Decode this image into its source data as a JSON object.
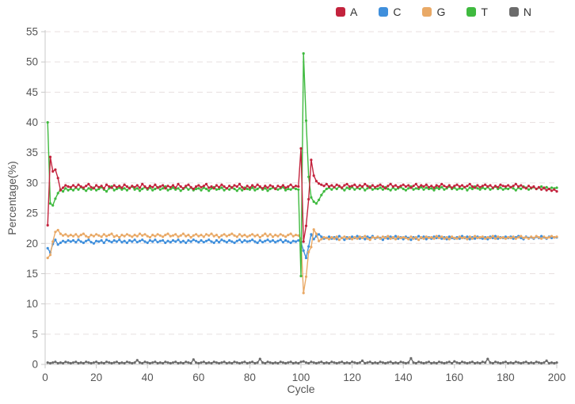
{
  "style": {
    "background": "#ffffff",
    "gridline_color": "#e8dfdf",
    "axis_line_color": "#c9c9c9",
    "tick_label_color": "#555555",
    "axis_title_color": "#555555",
    "legend_label_color": "#333333"
  },
  "axes": {
    "x_title": "Cycle",
    "y_title": "Percentage(%)"
  },
  "chart_data": {
    "type": "line",
    "title": "",
    "xlabel": "Cycle",
    "ylabel": "Percentage(%)",
    "xlim": [
      0,
      200
    ],
    "ylim": [
      0,
      55
    ],
    "xticks": [
      0,
      20,
      40,
      60,
      80,
      100,
      120,
      140,
      160,
      180,
      200
    ],
    "yticks": [
      0,
      5,
      10,
      15,
      20,
      25,
      30,
      35,
      40,
      45,
      50,
      55
    ],
    "grid": "horizontal-dashed",
    "legend_position": "top-right",
    "x_first_cycle": 1,
    "x_last_cycle": 200,
    "series": [
      {
        "name": "A",
        "color": "#c3233d",
        "values": [
          23.0,
          34.3,
          31.9,
          32.2,
          30.8,
          28.8,
          29.2,
          29.6,
          29.4,
          29.3,
          29.6,
          29.3,
          29.7,
          29.4,
          29.2,
          29.5,
          29.8,
          29.3,
          29.1,
          29.6,
          29.3,
          29.5,
          29.1,
          29.7,
          29.4,
          29.2,
          29.6,
          29.3,
          29.5,
          29.2,
          29.7,
          29.4,
          29.1,
          29.5,
          29.3,
          29.6,
          29.2,
          29.8,
          29.4,
          29.1,
          29.5,
          29.3,
          29.7,
          29.2,
          29.4,
          29.6,
          29.1,
          29.5,
          29.3,
          29.6,
          29.2,
          29.8,
          29.4,
          29.1,
          29.5,
          29.7,
          29.3,
          29.0,
          29.4,
          29.6,
          29.3,
          29.5,
          29.8,
          29.2,
          29.4,
          29.1,
          29.6,
          29.3,
          29.7,
          29.4,
          29.1,
          29.5,
          29.2,
          29.6,
          29.4,
          29.8,
          29.3,
          29.0,
          29.5,
          29.2,
          29.6,
          29.3,
          29.7,
          29.4,
          29.1,
          29.5,
          29.2,
          29.6,
          29.4,
          29.0,
          29.5,
          29.3,
          29.6,
          29.2,
          29.4,
          29.7,
          29.3,
          29.5,
          29.4,
          35.7,
          20.3,
          22.9,
          27.3,
          33.8,
          31.2,
          30.3,
          29.9,
          29.7,
          29.5,
          29.8,
          29.4,
          29.6,
          29.3,
          29.7,
          29.5,
          29.2,
          29.6,
          29.8,
          29.4,
          29.5,
          29.7,
          29.3,
          29.6,
          29.4,
          29.8,
          29.5,
          29.2,
          29.6,
          29.3,
          29.5,
          29.7,
          29.4,
          29.1,
          29.5,
          29.8,
          29.4,
          29.6,
          29.3,
          29.5,
          29.7,
          29.4,
          29.6,
          29.2,
          29.5,
          29.8,
          29.3,
          29.6,
          29.4,
          29.7,
          29.3,
          29.5,
          29.2,
          29.6,
          29.4,
          29.8,
          29.5,
          29.3,
          29.6,
          29.2,
          29.5,
          29.7,
          29.4,
          29.6,
          29.3,
          29.5,
          29.8,
          29.4,
          29.2,
          29.6,
          29.3,
          29.5,
          29.7,
          29.4,
          29.6,
          29.2,
          29.5,
          29.3,
          29.7,
          29.5,
          29.4,
          29.6,
          29.3,
          29.5,
          29.8,
          29.4,
          29.6,
          29.3,
          29.1,
          29.5,
          29.2,
          29.4,
          29.0,
          29.3,
          28.9,
          29.2,
          28.8,
          29.0,
          28.7,
          28.9,
          28.6
        ]
      },
      {
        "name": "C",
        "color": "#3f8fdc",
        "values": [
          19.2,
          18.5,
          19.9,
          20.6,
          19.8,
          20.1,
          20.4,
          20.2,
          20.5,
          20.3,
          20.5,
          20.2,
          20.6,
          20.3,
          20.1,
          20.4,
          20.6,
          20.2,
          20.0,
          20.4,
          20.3,
          20.5,
          20.1,
          20.6,
          20.4,
          20.2,
          20.5,
          20.3,
          20.6,
          20.2,
          20.4,
          20.1,
          20.5,
          20.3,
          20.6,
          20.2,
          20.4,
          20.6,
          20.3,
          20.1,
          20.5,
          20.3,
          20.6,
          20.2,
          20.4,
          20.5,
          20.1,
          20.4,
          20.2,
          20.5,
          20.3,
          20.6,
          20.2,
          20.4,
          20.1,
          20.5,
          20.3,
          20.6,
          20.4,
          20.2,
          20.5,
          20.2,
          20.4,
          20.6,
          20.3,
          20.1,
          20.5,
          20.2,
          20.6,
          20.4,
          20.2,
          20.5,
          20.3,
          20.1,
          20.4,
          20.6,
          20.2,
          20.5,
          20.3,
          20.4,
          20.6,
          20.3,
          20.1,
          20.5,
          20.2,
          20.4,
          20.6,
          20.3,
          20.5,
          20.2,
          20.4,
          20.6,
          20.2,
          20.5,
          20.3,
          20.1,
          20.4,
          20.3,
          20.5,
          20.2,
          18.8,
          17.6,
          19.5,
          21.5,
          20.7,
          21.2,
          21.5,
          21.1,
          20.8,
          20.9,
          21.1,
          20.8,
          21.0,
          20.7,
          21.2,
          20.9,
          20.6,
          21.0,
          20.8,
          21.1,
          20.9,
          21.2,
          20.8,
          21.0,
          20.7,
          21.1,
          20.9,
          21.2,
          20.8,
          21.0,
          20.9,
          20.6,
          21.0,
          20.8,
          21.1,
          20.9,
          21.2,
          20.8,
          21.0,
          20.7,
          21.1,
          20.9,
          20.6,
          21.0,
          20.8,
          21.2,
          20.9,
          21.1,
          20.7,
          21.0,
          20.8,
          21.1,
          20.9,
          21.2,
          20.8,
          21.0,
          20.7,
          21.1,
          20.9,
          20.8,
          21.0,
          20.8,
          21.2,
          20.9,
          21.1,
          20.7,
          21.0,
          20.8,
          21.1,
          20.9,
          20.8,
          21.0,
          20.7,
          21.1,
          20.9,
          21.2,
          20.8,
          21.0,
          20.9,
          21.1,
          20.9,
          21.1,
          20.8,
          21.0,
          21.2,
          20.9,
          20.7,
          21.1,
          20.9,
          21.0,
          20.8,
          21.1,
          20.9,
          21.2,
          21.0,
          20.8,
          21.1,
          20.9,
          21.0,
          21.0
        ]
      },
      {
        "name": "G",
        "color": "#e9a966",
        "values": [
          17.6,
          18.1,
          20.3,
          21.9,
          22.2,
          21.6,
          21.3,
          21.5,
          21.2,
          21.4,
          21.2,
          21.5,
          21.1,
          21.4,
          21.6,
          21.2,
          21.0,
          21.4,
          21.2,
          21.5,
          21.3,
          21.1,
          21.5,
          21.2,
          21.4,
          21.6,
          21.1,
          21.3,
          21.0,
          21.4,
          21.2,
          21.5,
          21.3,
          21.1,
          21.4,
          21.2,
          21.6,
          21.3,
          21.5,
          21.2,
          21.0,
          21.4,
          21.2,
          21.5,
          21.3,
          21.1,
          21.4,
          21.6,
          21.2,
          21.3,
          21.5,
          21.1,
          21.3,
          21.6,
          21.2,
          21.4,
          21.0,
          21.3,
          21.5,
          21.2,
          21.4,
          21.1,
          21.5,
          21.3,
          21.6,
          21.2,
          21.4,
          21.0,
          21.3,
          21.5,
          21.2,
          21.4,
          21.6,
          21.3,
          21.1,
          21.5,
          21.2,
          21.4,
          21.1,
          21.3,
          21.5,
          21.2,
          21.4,
          21.0,
          21.3,
          21.6,
          21.2,
          21.5,
          21.1,
          21.4,
          21.2,
          21.5,
          21.3,
          21.1,
          21.4,
          21.6,
          21.2,
          21.4,
          21.3,
          20.8,
          11.8,
          14.5,
          18.6,
          19.4,
          22.3,
          21.6,
          20.4,
          20.7,
          21.0,
          20.9,
          20.7,
          21.0,
          20.8,
          21.1,
          20.6,
          20.9,
          21.1,
          20.8,
          21.0,
          20.7,
          21.0,
          20.8,
          21.1,
          20.9,
          21.2,
          20.8,
          20.6,
          21.0,
          20.9,
          21.1,
          20.8,
          21.1,
          20.9,
          21.2,
          20.8,
          21.0,
          20.7,
          21.1,
          20.9,
          21.0,
          20.9,
          20.7,
          21.1,
          20.8,
          21.0,
          20.6,
          21.0,
          20.8,
          21.1,
          20.9,
          21.0,
          20.8,
          21.2,
          20.9,
          21.1,
          20.8,
          21.0,
          20.7,
          21.1,
          20.9,
          20.8,
          21.1,
          20.9,
          21.0,
          20.7,
          21.1,
          20.8,
          21.2,
          20.9,
          21.0,
          21.1,
          20.8,
          21.0,
          20.9,
          21.2,
          20.8,
          21.1,
          20.9,
          21.0,
          20.8,
          21.0,
          20.9,
          21.1,
          20.8,
          21.0,
          21.2,
          20.9,
          21.0,
          20.8,
          21.1,
          20.9,
          21.2,
          21.0,
          20.8,
          21.1,
          20.9,
          21.0,
          21.2,
          21.0,
          21.1
        ]
      },
      {
        "name": "T",
        "color": "#3fba3f",
        "values": [
          40.0,
          26.6,
          26.3,
          27.4,
          28.3,
          28.9,
          28.6,
          29.1,
          28.8,
          29.0,
          28.8,
          29.2,
          28.9,
          29.3,
          29.0,
          28.7,
          29.1,
          28.9,
          29.2,
          28.8,
          29.0,
          29.3,
          28.9,
          28.6,
          29.1,
          29.4,
          28.8,
          29.0,
          29.2,
          28.9,
          29.1,
          28.8,
          29.2,
          29.4,
          28.9,
          29.1,
          28.7,
          29.0,
          29.3,
          28.9,
          29.2,
          28.8,
          29.0,
          29.3,
          28.9,
          29.1,
          29.4,
          28.8,
          29.0,
          29.2,
          28.9,
          29.1,
          28.7,
          29.0,
          29.3,
          28.9,
          29.2,
          28.8,
          29.0,
          29.1,
          28.8,
          29.2,
          29.0,
          28.7,
          29.1,
          29.3,
          28.9,
          29.0,
          29.2,
          28.8,
          29.1,
          28.9,
          29.3,
          29.0,
          28.7,
          29.1,
          28.8,
          29.2,
          29.0,
          28.9,
          29.2,
          28.8,
          29.0,
          29.3,
          28.9,
          29.1,
          28.7,
          29.0,
          29.2,
          29.1,
          28.9,
          29.1,
          29.3,
          28.8,
          29.0,
          28.9,
          29.2,
          29.0,
          28.9,
          14.6,
          51.4,
          40.3,
          31.0,
          27.6,
          26.9,
          26.6,
          27.2,
          28.0,
          28.6,
          29.0,
          29.2,
          28.9,
          29.3,
          29.0,
          29.4,
          29.1,
          28.8,
          29.2,
          29.0,
          29.3,
          28.9,
          29.2,
          29.0,
          29.3,
          28.8,
          29.1,
          29.4,
          28.9,
          29.1,
          29.0,
          29.2,
          28.9,
          29.3,
          29.0,
          28.8,
          29.2,
          28.9,
          29.1,
          29.3,
          29.0,
          28.8,
          29.1,
          29.4,
          28.9,
          29.1,
          29.0,
          29.3,
          28.9,
          29.2,
          29.0,
          29.1,
          28.8,
          29.2,
          29.0,
          29.3,
          28.9,
          29.1,
          29.4,
          29.0,
          29.2,
          28.9,
          29.1,
          29.0,
          29.3,
          28.8,
          29.2,
          29.0,
          29.4,
          29.1,
          28.9,
          29.2,
          29.0,
          29.3,
          28.9,
          29.1,
          29.4,
          29.0,
          29.2,
          28.9,
          29.1,
          29.0,
          29.3,
          29.1,
          28.8,
          29.2,
          29.0,
          29.4,
          29.2,
          28.9,
          29.1,
          29.3,
          29.0,
          29.2,
          29.4,
          29.1,
          29.3,
          29.0,
          29.2,
          29.1,
          29.2
        ]
      },
      {
        "name": "N",
        "color": "#6b6b6b",
        "values": [
          0.3,
          0.2,
          0.3,
          0.4,
          0.2,
          0.3,
          0.2,
          0.4,
          0.3,
          0.2,
          0.3,
          0.4,
          0.2,
          0.3,
          0.2,
          0.4,
          0.3,
          0.2,
          0.3,
          0.4,
          0.2,
          0.3,
          0.2,
          0.4,
          0.3,
          0.2,
          0.3,
          0.4,
          0.2,
          0.3,
          0.2,
          0.4,
          0.3,
          0.2,
          0.3,
          0.7,
          0.3,
          0.2,
          0.4,
          0.3,
          0.2,
          0.3,
          0.4,
          0.2,
          0.3,
          0.2,
          0.4,
          0.3,
          0.2,
          0.3,
          0.4,
          0.2,
          0.3,
          0.2,
          0.4,
          0.3,
          0.2,
          0.8,
          0.3,
          0.2,
          0.3,
          0.4,
          0.2,
          0.3,
          0.2,
          0.4,
          0.3,
          0.2,
          0.3,
          0.4,
          0.2,
          0.3,
          0.2,
          0.4,
          0.3,
          0.2,
          0.3,
          0.4,
          0.2,
          0.3,
          0.4,
          0.2,
          0.3,
          0.9,
          0.3,
          0.2,
          0.4,
          0.3,
          0.2,
          0.3,
          0.2,
          0.4,
          0.3,
          0.2,
          0.3,
          0.4,
          0.2,
          0.3,
          0.2,
          0.4,
          0.5,
          0.3,
          0.2,
          0.4,
          0.3,
          0.2,
          0.3,
          0.4,
          0.2,
          0.3,
          0.2,
          0.4,
          0.3,
          0.2,
          0.3,
          0.4,
          0.2,
          0.3,
          0.2,
          0.4,
          0.3,
          0.2,
          0.3,
          0.6,
          0.2,
          0.3,
          0.4,
          0.2,
          0.3,
          0.2,
          0.4,
          0.3,
          0.2,
          0.3,
          0.4,
          0.2,
          0.3,
          0.2,
          0.4,
          0.3,
          0.2,
          0.3,
          1.0,
          0.3,
          0.2,
          0.4,
          0.3,
          0.2,
          0.3,
          0.4,
          0.2,
          0.3,
          0.2,
          0.4,
          0.3,
          0.2,
          0.3,
          0.4,
          0.2,
          0.5,
          0.3,
          0.2,
          0.4,
          0.3,
          0.2,
          0.3,
          0.4,
          0.2,
          0.3,
          0.2,
          0.4,
          0.3,
          0.9,
          0.3,
          0.2,
          0.4,
          0.3,
          0.2,
          0.3,
          0.4,
          0.2,
          0.3,
          0.2,
          0.4,
          0.3,
          0.2,
          0.3,
          0.4,
          0.2,
          0.3,
          0.2,
          0.4,
          0.3,
          0.2,
          0.3,
          0.6,
          0.2,
          0.3,
          0.2,
          0.3
        ]
      }
    ]
  }
}
